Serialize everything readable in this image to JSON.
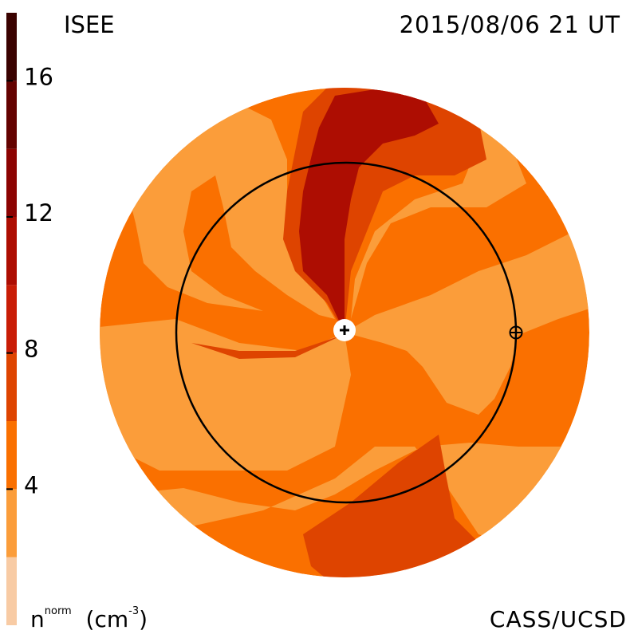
{
  "header": {
    "org": "ISEE",
    "datetime": "2015/08/06 21 UT"
  },
  "footer": {
    "credit": "CASS/UCSD"
  },
  "colorbar": {
    "quantity": "n",
    "quantity_superscript": "norm",
    "unit_open": "(cm",
    "unit_superscript": "-3",
    "unit_close": ")",
    "tick_labels": [
      "16",
      "12",
      "8",
      "4"
    ],
    "range": [
      0,
      18
    ],
    "levels": [
      {
        "from": 0,
        "to": 2,
        "color": "#f8cba4"
      },
      {
        "from": 2,
        "to": 4,
        "color": "#fb9d3a"
      },
      {
        "from": 4,
        "to": 6,
        "color": "#fa7000"
      },
      {
        "from": 6,
        "to": 8,
        "color": "#de4400"
      },
      {
        "from": 8,
        "to": 10,
        "color": "#c91d06"
      },
      {
        "from": 10,
        "to": 12,
        "color": "#ad0d02"
      },
      {
        "from": 12,
        "to": 14,
        "color": "#8c0301"
      },
      {
        "from": 14,
        "to": 16,
        "color": "#640200"
      },
      {
        "from": 16,
        "to": 18,
        "color": "#3a0200"
      }
    ]
  },
  "map": {
    "markers": [
      {
        "name": "sun-marker",
        "glyph": "+"
      },
      {
        "name": "earth-marker",
        "glyph": "⊕"
      }
    ]
  }
}
